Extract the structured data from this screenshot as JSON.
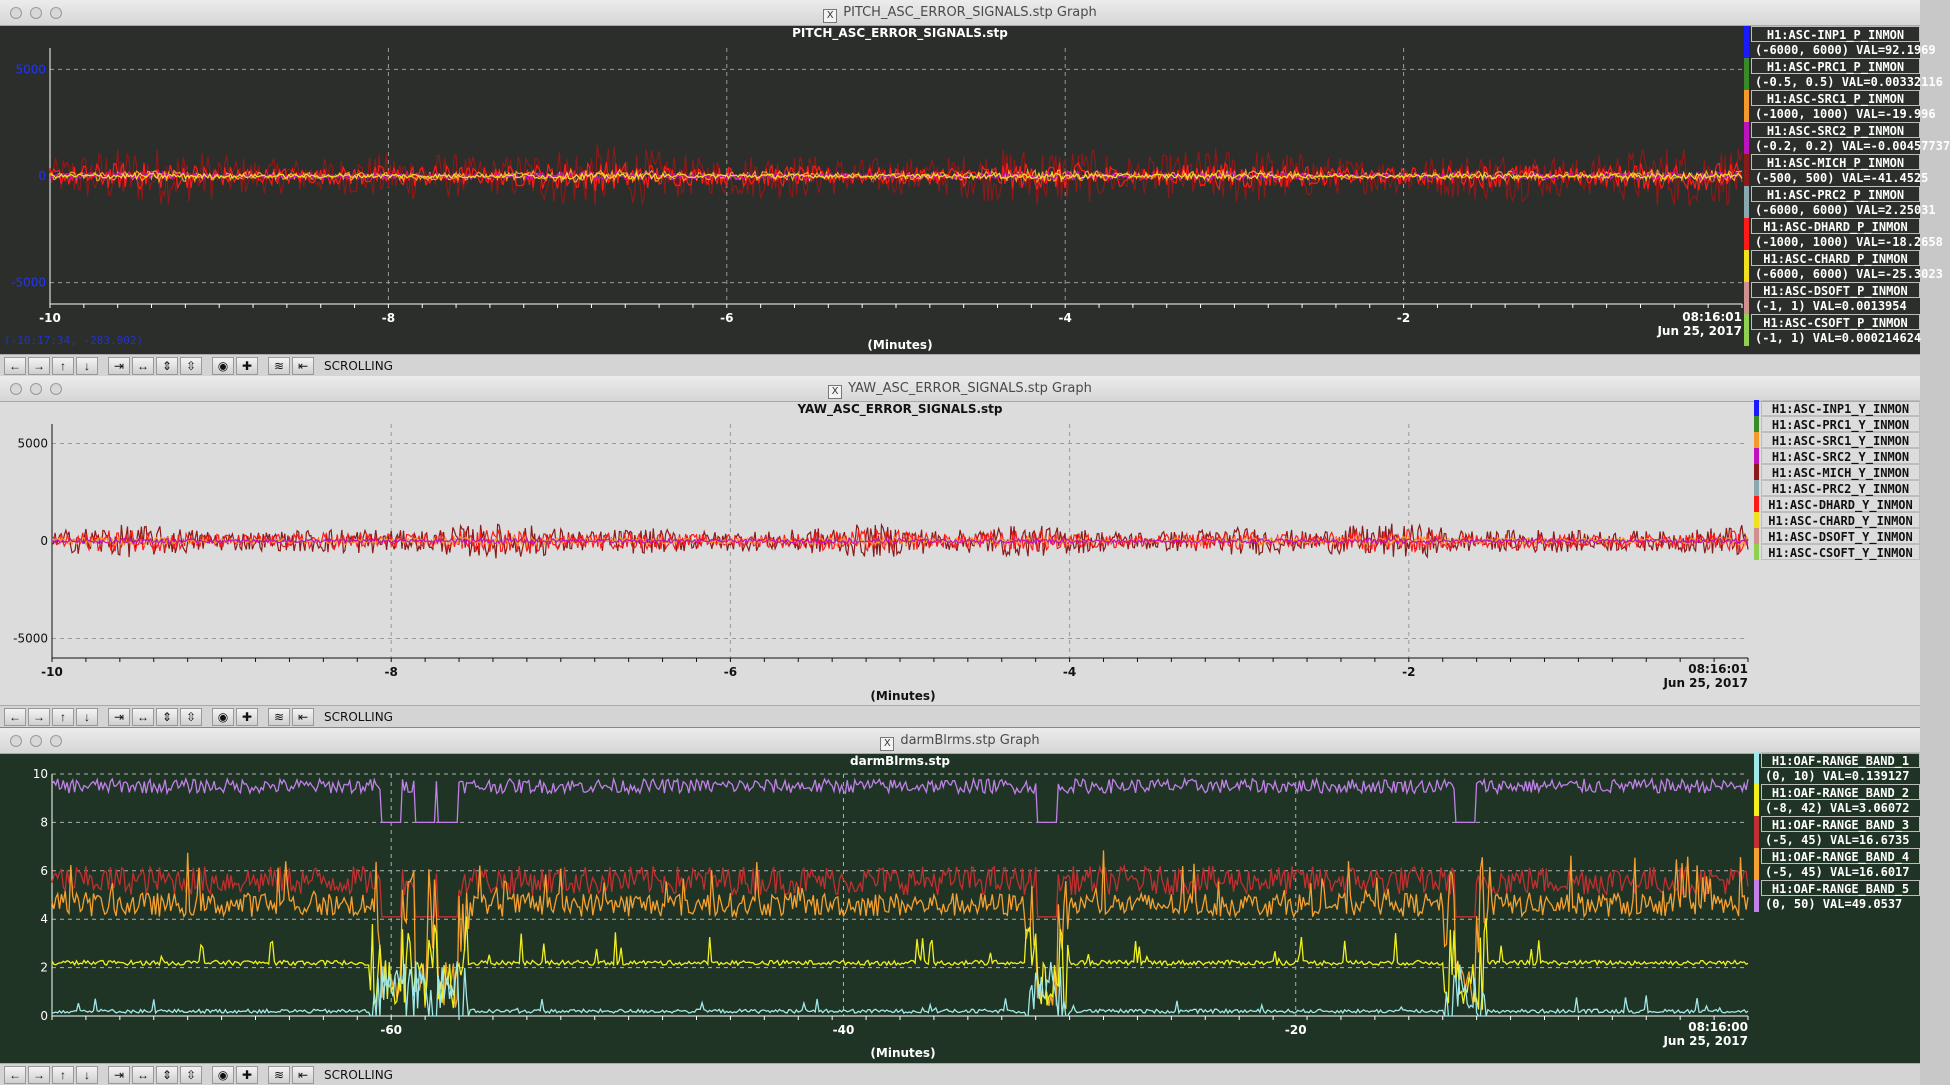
{
  "windows": [
    {
      "title": "PITCH_ASC_ERROR_SIGNALS.stp Graph",
      "plot_title": "PITCH_ASC_ERROR_SIGNALS.stp",
      "x_unit": "(Minutes)",
      "timestamp_time": "08:16:01",
      "timestamp_date": "Jun 25, 2017",
      "cursor_readout": "(-10:17:34, -283.902)",
      "mode": "SCROLLING",
      "legend": [
        {
          "name": "H1:ASC-INP1_P_INMON",
          "value": "(-6000, 6000) VAL=92.1969",
          "color": "#1a1aff"
        },
        {
          "name": "H1:ASC-PRC1_P_INMON",
          "value": "(-0.5, 0.5) VAL=0.00332116",
          "color": "#3a8a2a"
        },
        {
          "name": "H1:ASC-SRC1_P_INMON",
          "value": "(-1000, 1000) VAL=-19.996",
          "color": "#f59a2a"
        },
        {
          "name": "H1:ASC-SRC2_P_INMON",
          "value": "(-0.2, 0.2) VAL=-0.00457737",
          "color": "#c010c0"
        },
        {
          "name": "H1:ASC-MICH_P_INMON",
          "value": "(-500, 500) VAL=-41.4525",
          "color": "#8b1a1a"
        },
        {
          "name": "H1:ASC-PRC2_P_INMON",
          "value": "(-6000, 6000) VAL=2.25031",
          "color": "#8aa8b0"
        },
        {
          "name": "H1:ASC-DHARD_P_INMON",
          "value": "(-1000, 1000) VAL=-18.2658",
          "color": "#ff1a1a"
        },
        {
          "name": "H1:ASC-CHARD_P_INMON",
          "value": "(-6000, 6000) VAL=-25.3023",
          "color": "#f0e020"
        },
        {
          "name": "H1:ASC-DSOFT_P_INMON",
          "value": "(-1, 1) VAL=0.0013954",
          "color": "#d09090"
        },
        {
          "name": "H1:ASC-CSOFT_P_INMON",
          "value": "(-1, 1) VAL=0.000214624",
          "color": "#90d050"
        }
      ]
    },
    {
      "title": "YAW_ASC_ERROR_SIGNALS.stp Graph",
      "plot_title": "YAW_ASC_ERROR_SIGNALS.stp",
      "x_unit": "(Minutes)",
      "timestamp_time": "08:16:01",
      "timestamp_date": "Jun 25, 2017",
      "mode": "SCROLLING",
      "legend": [
        {
          "name": "H1:ASC-INP1_Y_INMON",
          "color": "#1a1aff"
        },
        {
          "name": "H1:ASC-PRC1_Y_INMON",
          "color": "#3a8a2a"
        },
        {
          "name": "H1:ASC-SRC1_Y_INMON",
          "color": "#f59a2a"
        },
        {
          "name": "H1:ASC-SRC2_Y_INMON",
          "color": "#c010c0"
        },
        {
          "name": "H1:ASC-MICH_Y_INMON",
          "color": "#8b1a1a"
        },
        {
          "name": "H1:ASC-PRC2_Y_INMON",
          "color": "#8aa8b0"
        },
        {
          "name": "H1:ASC-DHARD_Y_INMON",
          "color": "#ff1a1a"
        },
        {
          "name": "H1:ASC-CHARD_Y_INMON",
          "color": "#f0e020"
        },
        {
          "name": "H1:ASC-DSOFT_Y_INMON",
          "color": "#d09090"
        },
        {
          "name": "H1:ASC-CSOFT_Y_INMON",
          "color": "#90d050"
        }
      ]
    },
    {
      "title": "darmBlrms.stp Graph",
      "plot_title": "darmBlrms.stp",
      "x_unit": "(Minutes)",
      "timestamp_time": "08:16:00",
      "timestamp_date": "Jun 25, 2017",
      "mode": "SCROLLING",
      "legend": [
        {
          "name": "H1:OAF-RANGE_BAND_1",
          "value": "(0, 10) VAL=0.139127",
          "color": "#a0e8e8"
        },
        {
          "name": "H1:OAF-RANGE_BAND_2",
          "value": "(-8, 42) VAL=3.06072",
          "color": "#f0f020"
        },
        {
          "name": "H1:OAF-RANGE_BAND_3",
          "value": "(-5, 45) VAL=16.6735",
          "color": "#c03030"
        },
        {
          "name": "H1:OAF-RANGE_BAND_4",
          "value": "(-5, 45) VAL=16.6017",
          "color": "#f5a030"
        },
        {
          "name": "H1:OAF-RANGE_BAND_5",
          "value": "(0, 50) VAL=49.0537",
          "color": "#c080e8"
        }
      ]
    }
  ],
  "chart_data": [
    {
      "type": "line",
      "title": "PITCH_ASC_ERROR_SIGNALS.stp",
      "xlabel": "(Minutes)",
      "xlim": [
        -10,
        0
      ],
      "ylim": [
        -6000,
        6000
      ],
      "x_ticks": [
        -10,
        -8,
        -6,
        -4,
        -2
      ],
      "y_ticks": [
        5000,
        0,
        -5000
      ],
      "grid": true,
      "legend_position": "right",
      "series": [
        {
          "name": "H1:ASC-MICH_P_INMON",
          "amplitude": 1500,
          "color": "#8b1a1a"
        },
        {
          "name": "H1:ASC-DHARD_P_INMON",
          "amplitude": 700,
          "color": "#ff1a1a"
        },
        {
          "name": "H1:ASC-SRC1_P_INMON",
          "amplitude": 300,
          "color": "#f59a2a"
        },
        {
          "name": "H1:ASC-SRC2_P_INMON",
          "amplitude": 200,
          "color": "#c010c0"
        },
        {
          "name": "H1:ASC-CHARD_P_INMON",
          "amplitude": 150,
          "color": "#f0e020"
        }
      ]
    },
    {
      "type": "line",
      "title": "YAW_ASC_ERROR_SIGNALS.stp",
      "xlabel": "(Minutes)",
      "xlim": [
        -10,
        0
      ],
      "ylim": [
        -6000,
        6000
      ],
      "x_ticks": [
        -10,
        -8,
        -6,
        -4,
        -2
      ],
      "y_ticks": [
        5000,
        0,
        -5000
      ],
      "grid": true,
      "legend_position": "right",
      "series": [
        {
          "name": "H1:ASC-MICH_Y_INMON",
          "amplitude": 900,
          "color": "#8b1a1a"
        },
        {
          "name": "H1:ASC-DHARD_Y_INMON",
          "amplitude": 600,
          "color": "#ff1a1a"
        },
        {
          "name": "H1:ASC-SRC1_Y_INMON",
          "amplitude": 250,
          "color": "#f59a2a"
        },
        {
          "name": "H1:ASC-SRC2_Y_INMON",
          "amplitude": 150,
          "color": "#c010c0"
        }
      ]
    },
    {
      "type": "line",
      "title": "darmBlrms.stp",
      "xlabel": "(Minutes)",
      "xlim": [
        -75,
        0
      ],
      "ylim": [
        0,
        10
      ],
      "x_ticks": [
        -60,
        -40,
        -20
      ],
      "y_ticks": [
        0,
        2,
        4,
        6,
        8,
        10
      ],
      "grid": true,
      "legend_position": "right",
      "glitches_minutes": [
        -60,
        -58.5,
        -57.5,
        -31,
        -12.5
      ],
      "series": [
        {
          "name": "H1:OAF-RANGE_BAND_5",
          "baseline": 9.5,
          "noise": 0.3,
          "color": "#c080e8"
        },
        {
          "name": "H1:OAF-RANGE_BAND_3",
          "baseline": 5.6,
          "noise": 0.6,
          "color": "#c03030"
        },
        {
          "name": "H1:OAF-RANGE_BAND_4",
          "baseline": 4.6,
          "noise": 0.5,
          "color": "#f5a030"
        },
        {
          "name": "H1:OAF-RANGE_BAND_2",
          "baseline": 2.2,
          "noise": 0.1,
          "color": "#f0f020"
        },
        {
          "name": "H1:OAF-RANGE_BAND_1",
          "baseline": 0.2,
          "noise": 0.08,
          "color": "#a0e8e8"
        }
      ]
    }
  ],
  "toolbar": {
    "buttons": [
      "←",
      "→",
      "↑",
      "↓",
      "⇥",
      "↔",
      "⇕",
      "⇳",
      "◉",
      "✚",
      "≋",
      "⇤"
    ]
  }
}
